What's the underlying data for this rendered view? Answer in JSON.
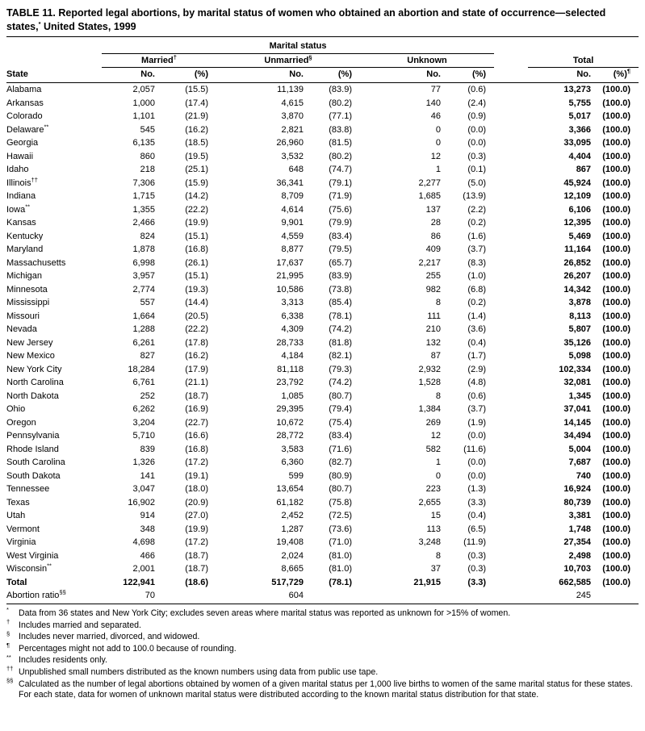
{
  "title": {
    "part1": "TABLE 11. Reported legal abortions, by marital status of women who obtained an abortion and state of occurrence—selected states,",
    "marker": "*",
    "part2": " United States, 1999"
  },
  "table": {
    "group_header": "Marital status",
    "state_header": "State",
    "no_label": "No.",
    "pct_label": "(%)",
    "pct_total_marker": "¶",
    "groups": [
      {
        "label": "Married",
        "marker": "†"
      },
      {
        "label": "Unmarried",
        "marker": "§"
      },
      {
        "label": "Unknown",
        "marker": ""
      },
      {
        "label": "Total",
        "marker": ""
      }
    ],
    "rows": [
      {
        "state": "Alabama",
        "married_no": "2,057",
        "married_pct": "(15.5)",
        "unmarried_no": "11,139",
        "unmarried_pct": "(83.9)",
        "unknown_no": "77",
        "unknown_pct": "(0.6)",
        "total_no": "13,273",
        "total_pct": "(100.0)"
      },
      {
        "state": "Arkansas",
        "married_no": "1,000",
        "married_pct": "(17.4)",
        "unmarried_no": "4,615",
        "unmarried_pct": "(80.2)",
        "unknown_no": "140",
        "unknown_pct": "(2.4)",
        "total_no": "5,755",
        "total_pct": "(100.0)"
      },
      {
        "state": "Colorado",
        "married_no": "1,101",
        "married_pct": "(21.9)",
        "unmarried_no": "3,870",
        "unmarried_pct": "(77.1)",
        "unknown_no": "46",
        "unknown_pct": "(0.9)",
        "total_no": "5,017",
        "total_pct": "(100.0)"
      },
      {
        "state": "Delaware",
        "state_marker": "**",
        "married_no": "545",
        "married_pct": "(16.2)",
        "unmarried_no": "2,821",
        "unmarried_pct": "(83.8)",
        "unknown_no": "0",
        "unknown_pct": "(0.0)",
        "total_no": "3,366",
        "total_pct": "(100.0)"
      },
      {
        "state": "Georgia",
        "married_no": "6,135",
        "married_pct": "(18.5)",
        "unmarried_no": "26,960",
        "unmarried_pct": "(81.5)",
        "unknown_no": "0",
        "unknown_pct": "(0.0)",
        "total_no": "33,095",
        "total_pct": "(100.0)"
      },
      {
        "state": "Hawaii",
        "married_no": "860",
        "married_pct": "(19.5)",
        "unmarried_no": "3,532",
        "unmarried_pct": "(80.2)",
        "unknown_no": "12",
        "unknown_pct": "(0.3)",
        "total_no": "4,404",
        "total_pct": "(100.0)"
      },
      {
        "state": "Idaho",
        "married_no": "218",
        "married_pct": "(25.1)",
        "unmarried_no": "648",
        "unmarried_pct": "(74.7)",
        "unknown_no": "1",
        "unknown_pct": "(0.1)",
        "total_no": "867",
        "total_pct": "(100.0)"
      },
      {
        "state": "Illinois",
        "state_marker": "††",
        "married_no": "7,306",
        "married_pct": "(15.9)",
        "unmarried_no": "36,341",
        "unmarried_pct": "(79.1)",
        "unknown_no": "2,277",
        "unknown_pct": "(5.0)",
        "total_no": "45,924",
        "total_pct": "(100.0)"
      },
      {
        "state": "Indiana",
        "married_no": "1,715",
        "married_pct": "(14.2)",
        "unmarried_no": "8,709",
        "unmarried_pct": "(71.9)",
        "unknown_no": "1,685",
        "unknown_pct": "(13.9)",
        "total_no": "12,109",
        "total_pct": "(100.0)"
      },
      {
        "state": "Iowa",
        "state_marker": "**",
        "married_no": "1,355",
        "married_pct": "(22.2)",
        "unmarried_no": "4,614",
        "unmarried_pct": "(75.6)",
        "unknown_no": "137",
        "unknown_pct": "(2.2)",
        "total_no": "6,106",
        "total_pct": "(100.0)"
      },
      {
        "state": "Kansas",
        "married_no": "2,466",
        "married_pct": "(19.9)",
        "unmarried_no": "9,901",
        "unmarried_pct": "(79.9)",
        "unknown_no": "28",
        "unknown_pct": "(0.2)",
        "total_no": "12,395",
        "total_pct": "(100.0)"
      },
      {
        "state": "Kentucky",
        "married_no": "824",
        "married_pct": "(15.1)",
        "unmarried_no": "4,559",
        "unmarried_pct": "(83.4)",
        "unknown_no": "86",
        "unknown_pct": "(1.6)",
        "total_no": "5,469",
        "total_pct": "(100.0)"
      },
      {
        "state": "Maryland",
        "married_no": "1,878",
        "married_pct": "(16.8)",
        "unmarried_no": "8,877",
        "unmarried_pct": "(79.5)",
        "unknown_no": "409",
        "unknown_pct": "(3.7)",
        "total_no": "11,164",
        "total_pct": "(100.0)"
      },
      {
        "state": "Massachusetts",
        "married_no": "6,998",
        "married_pct": "(26.1)",
        "unmarried_no": "17,637",
        "unmarried_pct": "(65.7)",
        "unknown_no": "2,217",
        "unknown_pct": "(8.3)",
        "total_no": "26,852",
        "total_pct": "(100.0)"
      },
      {
        "state": "Michigan",
        "married_no": "3,957",
        "married_pct": "(15.1)",
        "unmarried_no": "21,995",
        "unmarried_pct": "(83.9)",
        "unknown_no": "255",
        "unknown_pct": "(1.0)",
        "total_no": "26,207",
        "total_pct": "(100.0)"
      },
      {
        "state": "Minnesota",
        "married_no": "2,774",
        "married_pct": "(19.3)",
        "unmarried_no": "10,586",
        "unmarried_pct": "(73.8)",
        "unknown_no": "982",
        "unknown_pct": "(6.8)",
        "total_no": "14,342",
        "total_pct": "(100.0)"
      },
      {
        "state": "Mississippi",
        "married_no": "557",
        "married_pct": "(14.4)",
        "unmarried_no": "3,313",
        "unmarried_pct": "(85.4)",
        "unknown_no": "8",
        "unknown_pct": "(0.2)",
        "total_no": "3,878",
        "total_pct": "(100.0)"
      },
      {
        "state": "Missouri",
        "married_no": "1,664",
        "married_pct": "(20.5)",
        "unmarried_no": "6,338",
        "unmarried_pct": "(78.1)",
        "unknown_no": "111",
        "unknown_pct": "(1.4)",
        "total_no": "8,113",
        "total_pct": "(100.0)"
      },
      {
        "state": "Nevada",
        "married_no": "1,288",
        "married_pct": "(22.2)",
        "unmarried_no": "4,309",
        "unmarried_pct": "(74.2)",
        "unknown_no": "210",
        "unknown_pct": "(3.6)",
        "total_no": "5,807",
        "total_pct": "(100.0)"
      },
      {
        "state": "New Jersey",
        "married_no": "6,261",
        "married_pct": "(17.8)",
        "unmarried_no": "28,733",
        "unmarried_pct": "(81.8)",
        "unknown_no": "132",
        "unknown_pct": "(0.4)",
        "total_no": "35,126",
        "total_pct": "(100.0)"
      },
      {
        "state": "New Mexico",
        "married_no": "827",
        "married_pct": "(16.2)",
        "unmarried_no": "4,184",
        "unmarried_pct": "(82.1)",
        "unknown_no": "87",
        "unknown_pct": "(1.7)",
        "total_no": "5,098",
        "total_pct": "(100.0)"
      },
      {
        "state": "New York City",
        "married_no": "18,284",
        "married_pct": "(17.9)",
        "unmarried_no": "81,118",
        "unmarried_pct": "(79.3)",
        "unknown_no": "2,932",
        "unknown_pct": "(2.9)",
        "total_no": "102,334",
        "total_pct": "(100.0)"
      },
      {
        "state": "North Carolina",
        "married_no": "6,761",
        "married_pct": "(21.1)",
        "unmarried_no": "23,792",
        "unmarried_pct": "(74.2)",
        "unknown_no": "1,528",
        "unknown_pct": "(4.8)",
        "total_no": "32,081",
        "total_pct": "(100.0)"
      },
      {
        "state": "North Dakota",
        "married_no": "252",
        "married_pct": "(18.7)",
        "unmarried_no": "1,085",
        "unmarried_pct": "(80.7)",
        "unknown_no": "8",
        "unknown_pct": "(0.6)",
        "total_no": "1,345",
        "total_pct": "(100.0)"
      },
      {
        "state": "Ohio",
        "married_no": "6,262",
        "married_pct": "(16.9)",
        "unmarried_no": "29,395",
        "unmarried_pct": "(79.4)",
        "unknown_no": "1,384",
        "unknown_pct": "(3.7)",
        "total_no": "37,041",
        "total_pct": "(100.0)"
      },
      {
        "state": "Oregon",
        "married_no": "3,204",
        "married_pct": "(22.7)",
        "unmarried_no": "10,672",
        "unmarried_pct": "(75.4)",
        "unknown_no": "269",
        "unknown_pct": "(1.9)",
        "total_no": "14,145",
        "total_pct": "(100.0)"
      },
      {
        "state": "Pennsylvania",
        "married_no": "5,710",
        "married_pct": "(16.6)",
        "unmarried_no": "28,772",
        "unmarried_pct": "(83.4)",
        "unknown_no": "12",
        "unknown_pct": "(0.0)",
        "total_no": "34,494",
        "total_pct": "(100.0)"
      },
      {
        "state": "Rhode Island",
        "married_no": "839",
        "married_pct": "(16.8)",
        "unmarried_no": "3,583",
        "unmarried_pct": "(71.6)",
        "unknown_no": "582",
        "unknown_pct": "(11.6)",
        "total_no": "5,004",
        "total_pct": "(100.0)"
      },
      {
        "state": "South Carolina",
        "married_no": "1,326",
        "married_pct": "(17.2)",
        "unmarried_no": "6,360",
        "unmarried_pct": "(82.7)",
        "unknown_no": "1",
        "unknown_pct": "(0.0)",
        "total_no": "7,687",
        "total_pct": "(100.0)"
      },
      {
        "state": "South Dakota",
        "married_no": "141",
        "married_pct": "(19.1)",
        "unmarried_no": "599",
        "unmarried_pct": "(80.9)",
        "unknown_no": "0",
        "unknown_pct": "(0.0)",
        "total_no": "740",
        "total_pct": "(100.0)"
      },
      {
        "state": "Tennessee",
        "married_no": "3,047",
        "married_pct": "(18.0)",
        "unmarried_no": "13,654",
        "unmarried_pct": "(80.7)",
        "unknown_no": "223",
        "unknown_pct": "(1.3)",
        "total_no": "16,924",
        "total_pct": "(100.0)"
      },
      {
        "state": "Texas",
        "married_no": "16,902",
        "married_pct": "(20.9)",
        "unmarried_no": "61,182",
        "unmarried_pct": "(75.8)",
        "unknown_no": "2,655",
        "unknown_pct": "(3.3)",
        "total_no": "80,739",
        "total_pct": "(100.0)"
      },
      {
        "state": "Utah",
        "married_no": "914",
        "married_pct": "(27.0)",
        "unmarried_no": "2,452",
        "unmarried_pct": "(72.5)",
        "unknown_no": "15",
        "unknown_pct": "(0.4)",
        "total_no": "3,381",
        "total_pct": "(100.0)"
      },
      {
        "state": "Vermont",
        "married_no": "348",
        "married_pct": "(19.9)",
        "unmarried_no": "1,287",
        "unmarried_pct": "(73.6)",
        "unknown_no": "113",
        "unknown_pct": "(6.5)",
        "total_no": "1,748",
        "total_pct": "(100.0)"
      },
      {
        "state": "Virginia",
        "married_no": "4,698",
        "married_pct": "(17.2)",
        "unmarried_no": "19,408",
        "unmarried_pct": "(71.0)",
        "unknown_no": "3,248",
        "unknown_pct": "(11.9)",
        "total_no": "27,354",
        "total_pct": "(100.0)"
      },
      {
        "state": "West Virginia",
        "married_no": "466",
        "married_pct": "(18.7)",
        "unmarried_no": "2,024",
        "unmarried_pct": "(81.0)",
        "unknown_no": "8",
        "unknown_pct": "(0.3)",
        "total_no": "2,498",
        "total_pct": "(100.0)"
      },
      {
        "state": "Wisconsin",
        "state_marker": "**",
        "married_no": "2,001",
        "married_pct": "(18.7)",
        "unmarried_no": "8,665",
        "unmarried_pct": "(81.0)",
        "unknown_no": "37",
        "unknown_pct": "(0.3)",
        "total_no": "10,703",
        "total_pct": "(100.0)"
      },
      {
        "state": "Total",
        "bold": true,
        "married_no": "122,941",
        "married_pct": "(18.6)",
        "unmarried_no": "517,729",
        "unmarried_pct": "(78.1)",
        "unknown_no": "21,915",
        "unknown_pct": "(3.3)",
        "total_no": "662,585",
        "total_pct": "(100.0)"
      },
      {
        "state": "Abortion ratio",
        "state_marker": "§§",
        "plain": true,
        "married_no": "70",
        "married_pct": "",
        "unmarried_no": "604",
        "unmarried_pct": "",
        "unknown_no": "",
        "unknown_pct": "",
        "total_no": "245",
        "total_pct": ""
      }
    ]
  },
  "footnotes": [
    {
      "marker": "*",
      "text": "Data from 36 states and New York City; excludes seven areas where marital status was reported as unknown for >15% of women."
    },
    {
      "marker": "†",
      "text": "Includes married and separated."
    },
    {
      "marker": "§",
      "text": "Includes never married, divorced, and widowed."
    },
    {
      "marker": "¶",
      "text": "Percentages might not add to 100.0 because of rounding."
    },
    {
      "marker": "**",
      "text": "Includes residents only."
    },
    {
      "marker": "††",
      "text": "Unpublished small numbers distributed as the known numbers using data from public use tape."
    },
    {
      "marker": "§§",
      "text": "Calculated as the number of legal abortions obtained by women of a given marital status per 1,000 live births to women of the same marital status for these states. For each state, data for women of unknown marital status were distributed according to the known marital status distribution for that state."
    }
  ]
}
